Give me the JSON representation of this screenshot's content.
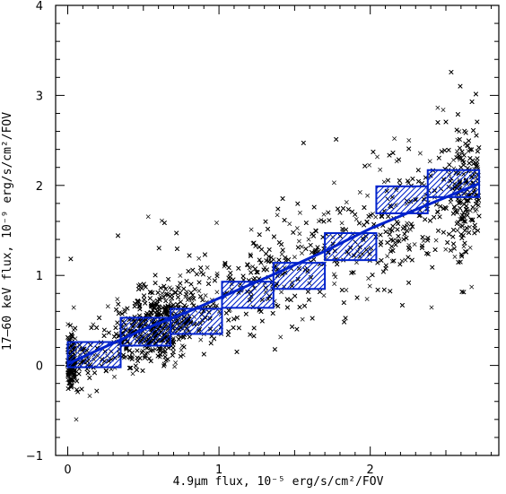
{
  "chart_data": {
    "type": "scatter",
    "title": "",
    "xlabel": "4.9μm flux, 10⁻⁵ erg/s/cm²/FOV",
    "ylabel": "17–60 keV flux, 10⁻⁹ erg/s/cm²/FOV",
    "xlim": [
      -0.08,
      2.85
    ],
    "ylim": [
      -1,
      4
    ],
    "xticks": [
      0,
      1,
      2
    ],
    "yticks": [
      -1,
      0,
      1,
      2,
      3,
      4
    ],
    "grid": false,
    "scatter": {
      "marker": "x",
      "color": "#000000",
      "description_points": "dense cloud of ~6000 points following the binned trend with spread ~0.5"
    },
    "binned": {
      "color": "#0022cc",
      "hatch": "diagonal",
      "bins": [
        {
          "x0": 0.0,
          "x1": 0.35,
          "y_lo": -0.02,
          "y_hi": 0.26
        },
        {
          "x0": 0.35,
          "x1": 0.68,
          "y_lo": 0.22,
          "y_hi": 0.53
        },
        {
          "x0": 0.68,
          "x1": 1.02,
          "y_lo": 0.35,
          "y_hi": 0.63
        },
        {
          "x0": 1.02,
          "x1": 1.36,
          "y_lo": 0.64,
          "y_hi": 0.93
        },
        {
          "x0": 1.36,
          "x1": 1.7,
          "y_lo": 0.85,
          "y_hi": 1.14
        },
        {
          "x0": 1.7,
          "x1": 2.04,
          "y_lo": 1.17,
          "y_hi": 1.47
        },
        {
          "x0": 2.04,
          "x1": 2.38,
          "y_lo": 1.69,
          "y_hi": 1.99
        },
        {
          "x0": 2.38,
          "x1": 2.72,
          "y_lo": 1.87,
          "y_hi": 2.17
        }
      ]
    },
    "fit_line": {
      "color": "#0022cc",
      "x": [
        0.0,
        0.2,
        0.5,
        0.8,
        1.1,
        1.4,
        1.7,
        2.0,
        2.3,
        2.72
      ],
      "y": [
        0.02,
        0.17,
        0.4,
        0.6,
        0.82,
        1.04,
        1.27,
        1.52,
        1.73,
        2.02
      ]
    }
  }
}
